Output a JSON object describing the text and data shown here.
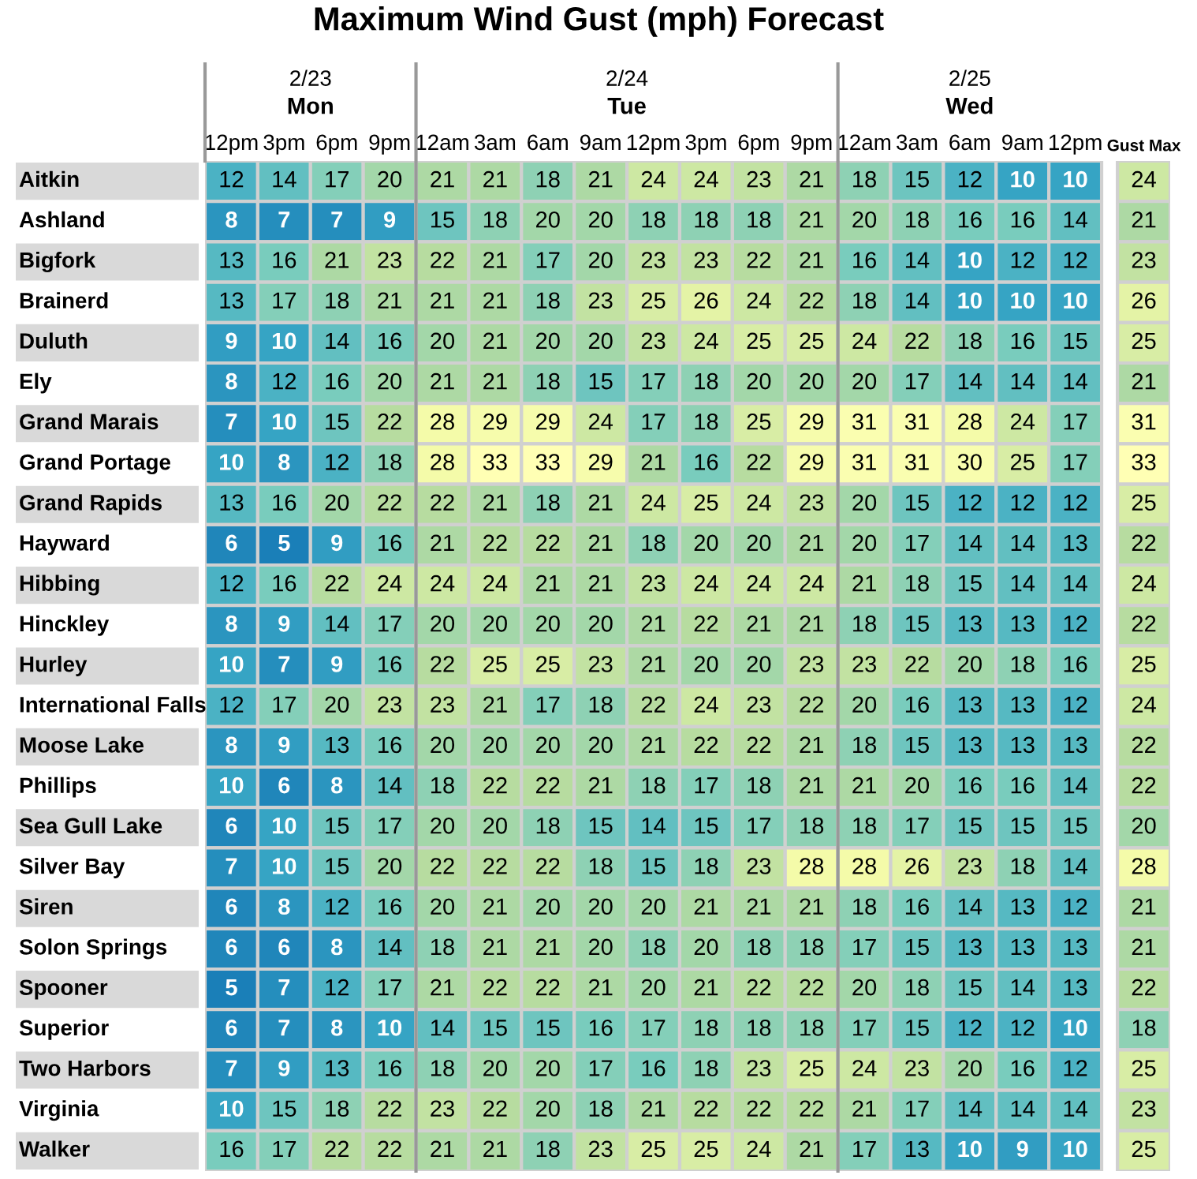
{
  "chart_data": {
    "type": "heatmap",
    "title": "Maximum Wind Gust (mph) Forecast",
    "annotations": [
      "2/23",
      "Mon",
      "2/24",
      "Tue",
      "2/25",
      "Wed"
    ],
    "categories": [
      "12pm",
      "3pm",
      "6pm",
      "9pm",
      "12am",
      "3am",
      "6am",
      "9am",
      "12pm",
      "3pm",
      "6pm",
      "9pm",
      "12am",
      "3am",
      "6am",
      "9am",
      "12pm",
      "Gust Max"
    ],
    "y_categories": [
      "Aitkin",
      "Ashland",
      "Bigfork",
      "Brainerd",
      "Duluth",
      "Ely",
      "Grand Marais",
      "Grand Portage",
      "Grand Rapids",
      "Hayward",
      "Hibbing",
      "Hinckley",
      "Hurley",
      "International Falls",
      "Moose Lake",
      "Phillips",
      "Sea Gull Lake",
      "Silver Bay",
      "Siren",
      "Solon Springs",
      "Spooner",
      "Superior",
      "Two Harbors",
      "Virginia",
      "Walker"
    ],
    "cells": [
      [
        12,
        14,
        17,
        20,
        21,
        21,
        18,
        21,
        24,
        24,
        23,
        21,
        18,
        15,
        12,
        10,
        10,
        24
      ],
      [
        8,
        7,
        7,
        9,
        15,
        18,
        20,
        20,
        18,
        18,
        18,
        21,
        20,
        18,
        16,
        16,
        14,
        21
      ],
      [
        13,
        16,
        21,
        23,
        22,
        21,
        17,
        20,
        23,
        23,
        22,
        21,
        16,
        14,
        10,
        12,
        12,
        23
      ],
      [
        13,
        17,
        18,
        21,
        21,
        21,
        18,
        23,
        25,
        26,
        24,
        22,
        18,
        14,
        10,
        10,
        10,
        26
      ],
      [
        9,
        10,
        14,
        16,
        20,
        21,
        20,
        20,
        23,
        24,
        25,
        25,
        24,
        22,
        18,
        16,
        15,
        25
      ],
      [
        8,
        12,
        16,
        20,
        21,
        21,
        18,
        15,
        17,
        18,
        20,
        20,
        20,
        17,
        14,
        14,
        14,
        21
      ],
      [
        7,
        10,
        15,
        22,
        28,
        29,
        29,
        24,
        17,
        18,
        25,
        29,
        31,
        31,
        28,
        24,
        17,
        31
      ],
      [
        10,
        8,
        12,
        18,
        28,
        33,
        33,
        29,
        21,
        16,
        22,
        29,
        31,
        31,
        30,
        25,
        17,
        33
      ],
      [
        13,
        16,
        20,
        22,
        22,
        21,
        18,
        21,
        24,
        25,
        24,
        23,
        20,
        15,
        12,
        12,
        12,
        25
      ],
      [
        6,
        5,
        9,
        16,
        21,
        22,
        22,
        21,
        18,
        20,
        20,
        21,
        20,
        17,
        14,
        14,
        13,
        22
      ],
      [
        12,
        16,
        22,
        24,
        24,
        24,
        21,
        21,
        23,
        24,
        24,
        24,
        21,
        18,
        15,
        14,
        14,
        24
      ],
      [
        8,
        9,
        14,
        17,
        20,
        20,
        20,
        20,
        21,
        22,
        21,
        21,
        18,
        15,
        13,
        13,
        12,
        22
      ],
      [
        10,
        7,
        9,
        16,
        22,
        25,
        25,
        23,
        21,
        20,
        20,
        23,
        23,
        22,
        20,
        18,
        16,
        25
      ],
      [
        12,
        17,
        20,
        23,
        23,
        21,
        17,
        18,
        22,
        24,
        23,
        22,
        20,
        16,
        13,
        13,
        12,
        24
      ],
      [
        8,
        9,
        13,
        16,
        20,
        20,
        20,
        20,
        21,
        22,
        22,
        21,
        18,
        15,
        13,
        13,
        13,
        22
      ],
      [
        10,
        6,
        8,
        14,
        18,
        22,
        22,
        21,
        18,
        17,
        18,
        21,
        21,
        20,
        16,
        16,
        14,
        22
      ],
      [
        6,
        10,
        15,
        17,
        20,
        20,
        18,
        15,
        14,
        15,
        17,
        18,
        18,
        17,
        15,
        15,
        15,
        20
      ],
      [
        7,
        10,
        15,
        20,
        22,
        22,
        22,
        18,
        15,
        18,
        23,
        28,
        28,
        26,
        23,
        18,
        14,
        28
      ],
      [
        6,
        8,
        12,
        16,
        20,
        21,
        20,
        20,
        20,
        21,
        21,
        21,
        18,
        16,
        14,
        13,
        12,
        21
      ],
      [
        6,
        6,
        8,
        14,
        18,
        21,
        21,
        20,
        18,
        20,
        18,
        18,
        17,
        15,
        13,
        13,
        13,
        21
      ],
      [
        5,
        7,
        12,
        17,
        21,
        22,
        22,
        21,
        20,
        21,
        22,
        22,
        20,
        18,
        15,
        14,
        13,
        22
      ],
      [
        6,
        7,
        8,
        10,
        14,
        15,
        15,
        16,
        17,
        18,
        18,
        18,
        17,
        15,
        12,
        12,
        10,
        18
      ],
      [
        7,
        9,
        13,
        16,
        18,
        20,
        20,
        17,
        16,
        18,
        23,
        25,
        24,
        23,
        20,
        16,
        12,
        25
      ],
      [
        10,
        15,
        18,
        22,
        23,
        22,
        20,
        18,
        21,
        22,
        22,
        22,
        21,
        17,
        14,
        14,
        14,
        23
      ],
      [
        16,
        17,
        22,
        22,
        21,
        21,
        18,
        23,
        25,
        25,
        24,
        21,
        17,
        13,
        10,
        9,
        10,
        25
      ]
    ],
    "data_labels": true
  }
}
